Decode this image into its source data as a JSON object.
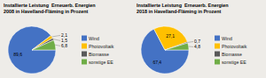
{
  "chart_data": [
    {
      "type": "pie",
      "title": "Installierte Leistung  Erneuerb. Energien\n2008 in Havelland-Fläming in Prozent",
      "categories": [
        "Wind",
        "Photovoltaik",
        "Biomasse",
        "sonstige EE"
      ],
      "values": [
        89.6,
        2.1,
        1.5,
        6.8
      ],
      "value_labels": [
        "89,6",
        "2,1",
        "1,5",
        "6,8"
      ],
      "colors": [
        "#4472c4",
        "#ffc000",
        "#595959",
        "#70ad47"
      ],
      "data_labels": true,
      "legend": "right"
    },
    {
      "type": "pie",
      "title": "Installierte Leistung  Erneuerb. Energien\n2018 in Havelland-Fläming in Prozent",
      "categories": [
        "Wind",
        "Photovoltaik",
        "Biomasse",
        "sonstige EE"
      ],
      "values": [
        67.4,
        27.1,
        0.7,
        4.8
      ],
      "value_labels": [
        "67,4",
        "27,1",
        "0,7",
        "4,8"
      ],
      "colors": [
        "#4472c4",
        "#ffc000",
        "#595959",
        "#70ad47"
      ],
      "data_labels": true,
      "legend": "right"
    }
  ]
}
